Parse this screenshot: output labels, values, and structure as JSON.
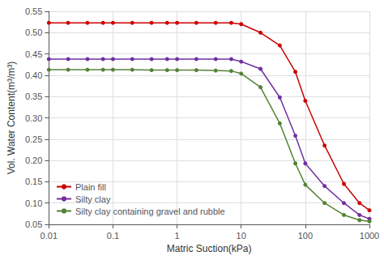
{
  "chart_data": {
    "type": "line",
    "xlabel": "Matric Suction(kPa)",
    "ylabel": "Vol. Water Content(m³/m³)",
    "log": "x",
    "xlim": [
      0.01,
      1000
    ],
    "xticks": [
      0.01,
      0.1,
      1,
      10,
      100,
      1000
    ],
    "ylim": [
      0.05,
      0.55
    ],
    "yticks": [
      0.05,
      {
        "value": 0.1,
        "label": "0.10"
      },
      0.15,
      {
        "value": 0.2,
        "label": "0.20"
      },
      0.25,
      {
        "value": 0.3,
        "label": "0.30"
      },
      0.35,
      {
        "value": 0.4,
        "label": "0.40"
      },
      0.45,
      {
        "value": 0.5,
        "label": "0.50"
      },
      0.55
    ],
    "grid": true,
    "legend": "lower left",
    "x": [
      0.01,
      0.02,
      0.04,
      0.07,
      0.1,
      0.2,
      0.4,
      0.7,
      1.0,
      2.0,
      4.0,
      7.0,
      10.0,
      20.0,
      40.0,
      70.0,
      100.0,
      200.0,
      400.0,
      700.0,
      1000.0
    ],
    "series": [
      {
        "name": "Plain fill",
        "color": "#cc0000",
        "marker": "circle",
        "values": [
          0.523,
          0.523,
          0.523,
          0.523,
          0.523,
          0.523,
          0.523,
          0.523,
          0.523,
          0.523,
          0.523,
          0.523,
          0.52,
          0.5,
          0.47,
          0.408,
          0.34,
          0.235,
          0.145,
          0.1,
          0.083
        ]
      },
      {
        "name": "Silty clay",
        "color": "#7030a0",
        "marker": "circle",
        "values": [
          0.438,
          0.438,
          0.438,
          0.438,
          0.438,
          0.438,
          0.438,
          0.438,
          0.438,
          0.438,
          0.438,
          0.438,
          0.432,
          0.415,
          0.348,
          0.258,
          0.193,
          0.14,
          0.1,
          0.072,
          0.063
        ]
      },
      {
        "name": "Silty clay containing gravel and rubble",
        "color": "#548235",
        "marker": "circle",
        "values": [
          0.413,
          0.413,
          0.413,
          0.413,
          0.413,
          0.413,
          0.412,
          0.412,
          0.412,
          0.412,
          0.411,
          0.41,
          0.404,
          0.372,
          0.287,
          0.193,
          0.143,
          0.1,
          0.072,
          0.06,
          0.057
        ]
      }
    ]
  }
}
